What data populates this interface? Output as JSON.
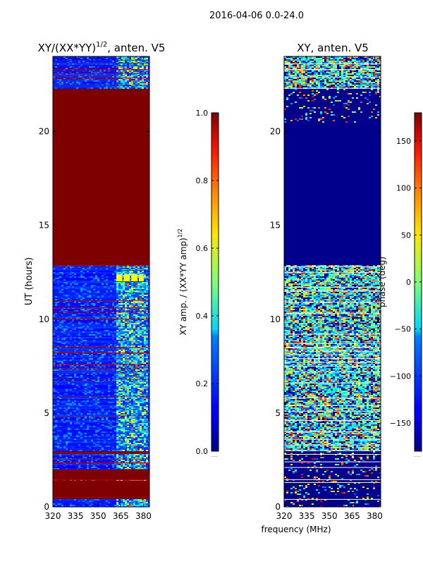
{
  "figure": {
    "suptitle": "2016-04-06 0.0-24.0",
    "xlabel_shared": "frequency (MHz)"
  },
  "chart_data": [
    {
      "type": "heatmap",
      "title": "XY/(XX*YY)^{1/2}, anten. V5",
      "title_main": "XY/(XX*YY)",
      "title_sup": "1/2",
      "title_tail": ", anten. V5",
      "xlabel": "",
      "ylabel": "UT (hours)",
      "xlim": [
        320,
        384
      ],
      "ylim": [
        0,
        24
      ],
      "xticks": [
        320,
        335,
        350,
        365,
        380
      ],
      "yticks": [
        0,
        5,
        10,
        15,
        20
      ],
      "colorbar": {
        "label": "XY amp. / (XX*YY amp)^{1/2}",
        "label_main": "XY amp. / (XX*YY amp)",
        "label_sup": "1/2",
        "range": [
          0.0,
          1.0
        ],
        "ticks": [
          "0.0",
          "0.2",
          "0.4",
          "0.6",
          "0.8",
          "1.0"
        ],
        "colormap": "jet",
        "offset_text": "......"
      },
      "saturated_bands_hours": [
        [
          0.4,
          1.4
        ],
        [
          1.5,
          2.0
        ],
        [
          2.8,
          2.95
        ],
        [
          12.9,
          22.3
        ],
        [
          20.55,
          20.7
        ]
      ],
      "masked_line_hours": [
        0.5,
        1.45,
        2.0,
        2.35,
        2.55,
        2.85,
        4.85,
        5.9,
        6.8,
        7.2,
        7.4,
        7.6,
        8.2,
        8.5,
        10.0,
        10.4,
        10.6,
        11.0,
        11.4,
        12.0,
        12.6,
        12.85,
        22.45,
        22.85,
        23.1,
        23.3,
        23.5,
        23.65,
        23.8
      ],
      "active_band_mhz": [
        362,
        382
      ],
      "bright_block_hours": [
        12.0,
        12.4
      ]
    },
    {
      "type": "heatmap",
      "title": "XY, anten. V5",
      "xlabel": "frequency (MHz)",
      "ylabel": "",
      "xlim": [
        320,
        384
      ],
      "ylim": [
        0,
        24
      ],
      "xticks": [
        320,
        335,
        350,
        365,
        380
      ],
      "yticks": [
        0,
        5,
        10,
        15,
        20
      ],
      "colorbar": {
        "label": "phase (deg)",
        "range": [
          -180,
          180
        ],
        "ticks": [
          "−150",
          "−100",
          "−50",
          "0",
          "50",
          "100",
          "150"
        ],
        "tick_values": [
          -150,
          -100,
          -50,
          0,
          50,
          100,
          150
        ],
        "colormap": "jet",
        "offset_text": "......"
      },
      "quiet_band_hours": [
        12.9,
        20.5
      ],
      "white_line_hours": [
        0.4,
        1.3,
        1.45,
        2.1,
        2.4,
        2.8,
        3.0,
        3.3,
        3.6,
        4.0,
        4.6,
        5.1,
        5.4,
        5.8,
        6.6,
        7.2,
        7.5,
        7.7,
        7.9,
        8.1,
        8.3,
        8.5,
        8.7,
        9.2,
        10.3,
        10.9,
        11.5,
        11.7,
        12.5,
        12.8,
        22.3,
        22.9,
        23.3,
        23.6
      ]
    }
  ]
}
